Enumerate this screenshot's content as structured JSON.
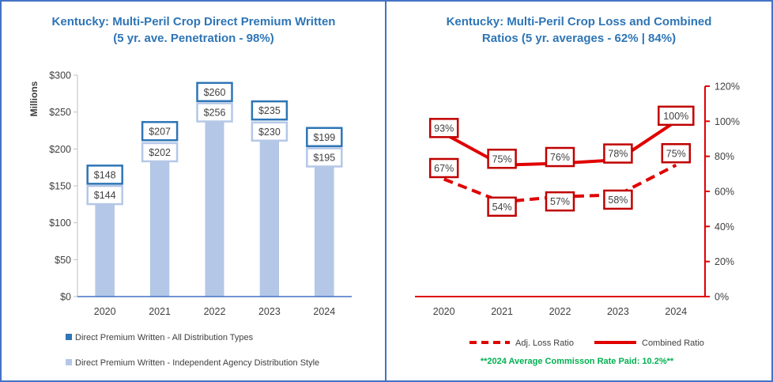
{
  "colors": {
    "border": "#4472c4",
    "title": "#2e75b6",
    "bar_all": "#2e75b6",
    "bar_agency": "#b4c7e7",
    "label_border_all": "#2e75b6",
    "label_border_agency": "#b4c7e7",
    "ratio": "#e00000",
    "ratio_label_border": "#c00000",
    "note": "#00b050"
  },
  "left_chart": {
    "title_line1": "Kentucky: Multi-Peril Crop Direct Premium Written",
    "title_line2": "(5 yr. ave. Penetration - 98%)"
  },
  "right_chart": {
    "title_line1": "Kentucky: Multi-Peril Crop Loss and Combined",
    "title_line2": "Ratios (5 yr. averages - 62% | 84%)"
  },
  "footnote": "**2024 Average Commisson Rate Paid: 10.2%**",
  "chart_data": [
    {
      "type": "bar",
      "title": "Kentucky: Multi-Peril Crop Direct Premium Written (5 yr. ave. Penetration - 98%)",
      "categories": [
        "2020",
        "2021",
        "2022",
        "2023",
        "2024"
      ],
      "ylabel": "Millions",
      "ylim": [
        0,
        300
      ],
      "yticks": [
        0,
        50,
        100,
        150,
        200,
        250,
        300
      ],
      "ytick_labels": [
        "$0",
        "$50",
        "$100",
        "$150",
        "$200",
        "$250",
        "$300"
      ],
      "series": [
        {
          "name": "Direct Premium Written - All Distribution Types",
          "values": [
            148,
            207,
            260,
            235,
            199
          ],
          "labels": [
            "$148",
            "$207",
            "$260",
            "$235",
            "$199"
          ]
        },
        {
          "name": "Direct Premium Written - Independent Agency Distribution Style",
          "values": [
            144,
            202,
            256,
            230,
            195
          ],
          "labels": [
            "$144",
            "$202",
            "$256",
            "$230",
            "$195"
          ]
        }
      ],
      "legend": "bottom"
    },
    {
      "type": "line",
      "title": "Kentucky: Multi-Peril Crop Loss and Combined Ratios (5 yr. averages - 62% | 84%)",
      "categories": [
        "2020",
        "2021",
        "2022",
        "2023",
        "2024"
      ],
      "ylim": [
        0,
        120
      ],
      "yticks": [
        0,
        20,
        40,
        60,
        80,
        100,
        120
      ],
      "ytick_labels": [
        "0%",
        "20%",
        "40%",
        "60%",
        "80%",
        "100%",
        "120%"
      ],
      "y_axis_side": "right",
      "series": [
        {
          "name": "Adj. Loss Ratio",
          "style": "dashed",
          "values": [
            67,
            54,
            57,
            58,
            75
          ],
          "labels": [
            "67%",
            "54%",
            "57%",
            "58%",
            "75%"
          ]
        },
        {
          "name": "Combined Ratio",
          "style": "solid",
          "values": [
            93,
            75,
            76,
            78,
            100
          ],
          "labels": [
            "93%",
            "75%",
            "76%",
            "78%",
            "100%"
          ]
        }
      ],
      "legend": "bottom"
    }
  ]
}
